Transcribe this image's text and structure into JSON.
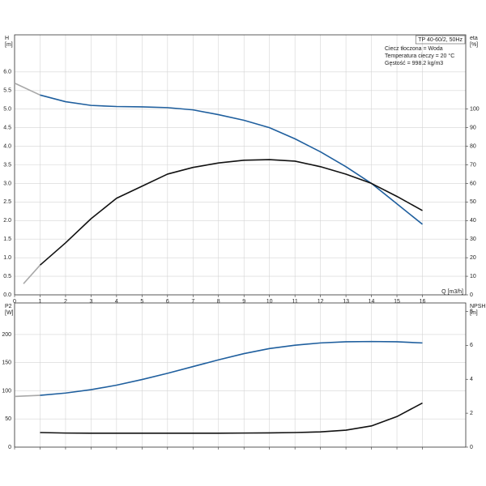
{
  "chart_data": [
    {
      "type": "line",
      "ylabel": [
        "H",
        "[m]"
      ],
      "y2label": [
        "eta",
        "[%]"
      ],
      "xlabel": "Q [m3/h]",
      "annotation_box": "TP 40-60/2, 50Hz",
      "annotations": [
        "Ciecz tłoczona = Woda",
        "Temperatura cieczy = 20 °C",
        "Gęstość = 998.2 kg/m3"
      ],
      "xlim": [
        0,
        17.7
      ],
      "xticks": [
        0,
        1,
        2,
        3,
        4,
        5,
        6,
        7,
        8,
        9,
        10,
        11,
        12,
        13,
        14,
        15,
        16
      ],
      "xtick_labels": true,
      "ylim": [
        0,
        7
      ],
      "yticks": [
        {
          "value": 0,
          "label": "0.0"
        },
        0.5,
        {
          "value": 1,
          "label": "1.0"
        },
        1.5,
        {
          "value": 2,
          "label": "2.0"
        },
        2.5,
        {
          "value": 3,
          "label": "3.0"
        },
        3.5,
        {
          "value": 4,
          "label": "4.0"
        },
        4.5,
        {
          "value": 5,
          "label": "5.0"
        },
        5.5,
        {
          "value": 6,
          "label": "6.0"
        }
      ],
      "y2lim": [
        0,
        140
      ],
      "y2ticks": [
        0,
        10,
        20,
        30,
        40,
        50,
        60,
        70,
        80,
        90,
        100
      ],
      "grid": true,
      "series": [
        {
          "color": "#a8a8a8",
          "x": [
            0,
            1
          ],
          "values": [
            5.7,
            5.38
          ]
        },
        {
          "color": "#1f5f9e",
          "x": [
            1,
            2,
            3,
            4,
            5,
            6,
            7,
            8,
            9,
            10,
            11,
            12,
            13,
            14,
            15,
            16
          ],
          "values": [
            5.38,
            5.2,
            5.1,
            5.07,
            5.06,
            5.04,
            4.98,
            4.85,
            4.7,
            4.5,
            4.2,
            3.85,
            3.45,
            3.0,
            2.45,
            1.9
          ]
        },
        {
          "color": "#a8a8a8",
          "axis": "y2",
          "x": [
            0.35,
            1
          ],
          "values": [
            6,
            16
          ]
        },
        {
          "color": "#111111",
          "axis": "y2",
          "x": [
            1,
            2,
            3,
            4,
            5,
            6,
            7,
            8,
            9,
            10,
            11,
            12,
            13,
            14,
            15,
            16
          ],
          "values": [
            16,
            28,
            41,
            52,
            58.5,
            65,
            68.6,
            71,
            72.5,
            72.8,
            72,
            69,
            65,
            60,
            53,
            45.4
          ]
        }
      ]
    },
    {
      "type": "line",
      "ylabel": [
        "P2",
        "[W]"
      ],
      "y2label": [
        "NPSH",
        "[m]"
      ],
      "xlim": [
        0,
        17.7
      ],
      "xticks": [
        0,
        1,
        2,
        3,
        4,
        5,
        6,
        7,
        8,
        9,
        10,
        11,
        12,
        13,
        14,
        15,
        16
      ],
      "xtick_labels": false,
      "ylim": [
        0,
        256
      ],
      "yticks": [
        0,
        50,
        100,
        150,
        200
      ],
      "y2lim": [
        0,
        8.5
      ],
      "y2ticks": [
        0,
        2,
        4,
        6,
        8
      ],
      "grid": true,
      "series": [
        {
          "color": "#a8a8a8",
          "x": [
            0,
            1
          ],
          "values": [
            90,
            92
          ]
        },
        {
          "color": "#1f5f9e",
          "x": [
            1,
            2,
            3,
            4,
            5,
            6,
            7,
            8,
            9,
            10,
            11,
            12,
            13,
            14,
            15,
            16
          ],
          "values": [
            92,
            96,
            102,
            110,
            120,
            131,
            143,
            155,
            166,
            175,
            181,
            185,
            187,
            187.5,
            187,
            185
          ]
        },
        {
          "color": "#111111",
          "axis": "y2",
          "x": [
            1,
            2,
            3,
            4,
            5,
            6,
            7,
            8,
            9,
            10,
            11,
            12,
            13,
            14,
            15,
            16
          ],
          "values": [
            0.86,
            0.83,
            0.82,
            0.82,
            0.82,
            0.82,
            0.82,
            0.82,
            0.83,
            0.84,
            0.86,
            0.9,
            1.0,
            1.25,
            1.8,
            2.6
          ]
        }
      ]
    }
  ]
}
